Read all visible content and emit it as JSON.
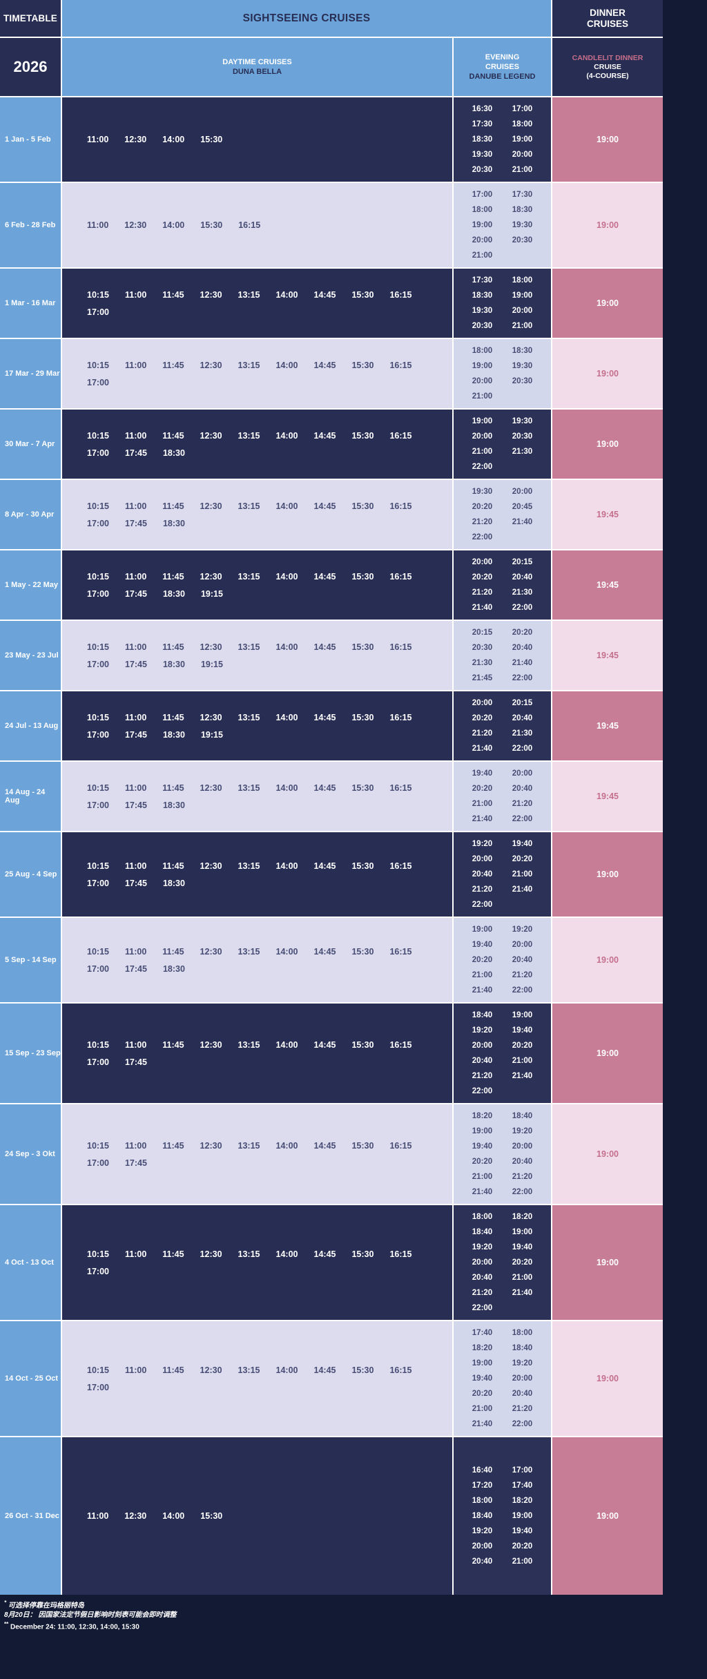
{
  "header": {
    "timetable_label": "TIMETABLE",
    "year": "2026",
    "sightseeing_title": "SIGHTSEEING CRUISES",
    "dinner_title": "DINNER\nCRUISES",
    "daytime_sub": {
      "line1": "DAYTIME CRUISES",
      "line2": "DUNA BELLA"
    },
    "evening_sub": {
      "line1": "EVENING",
      "line2": "CRUISES",
      "line3": "DANUBE LEGEND"
    },
    "dinner_sub": {
      "line1": "CANDLELIT DINNER",
      "line2": "CRUISE",
      "line3": "(4-COURSE)"
    }
  },
  "colors": {
    "navy": "#282d53",
    "navy_evening": "#2c3158",
    "blue": "#6ca4d9",
    "lavender": "#dcdcee",
    "lavender_evening": "#d3d7ec",
    "rose": "#c77d95",
    "pink_light": "#f3dcea",
    "rose_text": "#c4708c",
    "candlelit_text": "#c56e88",
    "navy_text": "#474d74",
    "page_bg": "#131a33",
    "border_white": "#ffffff"
  },
  "rows": [
    {
      "dates": "1 Jan - 5 Feb",
      "theme": "dark",
      "daytime": [
        "11:00",
        "12:30",
        "14:00",
        "15:30"
      ],
      "evening": [
        [
          "16:30",
          "17:00"
        ],
        [
          "17:30",
          "18:00"
        ],
        [
          "18:30",
          "19:00"
        ],
        [
          "19:30",
          "20:00"
        ],
        [
          "20:30",
          "21:00"
        ]
      ],
      "dinner": "19:00"
    },
    {
      "dates": "6 Feb - 28 Feb",
      "theme": "light",
      "daytime": [
        "11:00",
        "12:30",
        "14:00",
        "15:30",
        "16:15"
      ],
      "evening": [
        [
          "17:00",
          "17:30"
        ],
        [
          "18:00",
          "18:30"
        ],
        [
          "19:00",
          "19:30"
        ],
        [
          "20:00",
          "20:30"
        ],
        [
          "21:00"
        ]
      ],
      "dinner": "19:00"
    },
    {
      "dates": "1 Mar - 16 Mar",
      "theme": "dark",
      "daytime": [
        "10:15",
        "11:00",
        "11:45",
        "12:30",
        "13:15",
        "14:00",
        "14:45",
        "15:30",
        "16:15",
        "17:00"
      ],
      "evening": [
        [
          "17:30",
          "18:00"
        ],
        [
          "18:30",
          "19:00"
        ],
        [
          "19:30",
          "20:00"
        ],
        [
          "20:30",
          "21:00"
        ]
      ],
      "dinner": "19:00"
    },
    {
      "dates": "17 Mar - 29 Mar",
      "theme": "light",
      "daytime": [
        "10:15",
        "11:00",
        "11:45",
        "12:30",
        "13:15",
        "14:00",
        "14:45",
        "15:30",
        "16:15",
        "17:00"
      ],
      "evening": [
        [
          "18:00",
          "18:30"
        ],
        [
          "19:00",
          "19:30"
        ],
        [
          "20:00",
          "20:30"
        ],
        [
          "21:00"
        ]
      ],
      "dinner": "19:00"
    },
    {
      "dates": "30 Mar - 7 Apr",
      "theme": "dark",
      "daytime": [
        "10:15",
        "11:00",
        "11:45",
        "12:30",
        "13:15",
        "14:00",
        "14:45",
        "15:30",
        "16:15",
        "17:00",
        "17:45",
        "18:30"
      ],
      "evening": [
        [
          "19:00",
          "19:30"
        ],
        [
          "20:00",
          "20:30"
        ],
        [
          "21:00",
          "21:30"
        ],
        [
          "22:00"
        ]
      ],
      "dinner": "19:00"
    },
    {
      "dates": "8 Apr - 30 Apr",
      "theme": "light",
      "daytime": [
        "10:15",
        "11:00",
        "11:45",
        "12:30",
        "13:15",
        "14:00",
        "14:45",
        "15:30",
        "16:15",
        "17:00",
        "17:45",
        "18:30"
      ],
      "evening": [
        [
          "19:30",
          "20:00"
        ],
        [
          "20:20",
          "20:45"
        ],
        [
          "21:20",
          "21:40"
        ],
        [
          "22:00"
        ]
      ],
      "dinner": "19:45"
    },
    {
      "dates": "1 May - 22 May",
      "theme": "dark",
      "daytime": [
        "10:15",
        "11:00",
        "11:45",
        "12:30",
        "13:15",
        "14:00",
        "14:45",
        "15:30",
        "16:15",
        "17:00",
        "17:45",
        "18:30",
        "19:15"
      ],
      "evening": [
        [
          "20:00",
          "20:15"
        ],
        [
          "20:20",
          "20:40"
        ],
        [
          "21:20",
          "21:30"
        ],
        [
          "21:40",
          "22:00"
        ]
      ],
      "dinner": "19:45"
    },
    {
      "dates": "23 May - 23 Jul",
      "theme": "light",
      "daytime": [
        "10:15",
        "11:00",
        "11:45",
        "12:30",
        "13:15",
        "14:00",
        "14:45",
        "15:30",
        "16:15",
        "17:00",
        "17:45",
        "18:30",
        "19:15"
      ],
      "evening": [
        [
          "20:15",
          "20:20"
        ],
        [
          "20:30",
          "20:40"
        ],
        [
          "21:30",
          "21:40"
        ],
        [
          "21:45",
          "22:00"
        ]
      ],
      "dinner": "19:45"
    },
    {
      "dates": "24 Jul - 13 Aug",
      "theme": "dark",
      "daytime": [
        "10:15",
        "11:00",
        "11:45",
        "12:30",
        "13:15",
        "14:00",
        "14:45",
        "15:30",
        "16:15",
        "17:00",
        "17:45",
        "18:30",
        "19:15"
      ],
      "evening": [
        [
          "20:00",
          "20:15"
        ],
        [
          "20:20",
          "20:40"
        ],
        [
          "21:20",
          "21:30"
        ],
        [
          "21:40",
          "22:00"
        ]
      ],
      "dinner": "19:45"
    },
    {
      "dates": "14 Aug - 24 Aug",
      "theme": "light",
      "daytime": [
        "10:15",
        "11:00",
        "11:45",
        "12:30",
        "13:15",
        "14:00",
        "14:45",
        "15:30",
        "16:15",
        "17:00",
        "17:45",
        "18:30"
      ],
      "evening": [
        [
          "19:40",
          "20:00"
        ],
        [
          "20:20",
          "20:40"
        ],
        [
          "21:00",
          "21:20"
        ],
        [
          "21:40",
          "22:00"
        ]
      ],
      "dinner": "19:45"
    },
    {
      "dates": "25 Aug - 4 Sep",
      "theme": "dark",
      "daytime": [
        "10:15",
        "11:00",
        "11:45",
        "12:30",
        "13:15",
        "14:00",
        "14:45",
        "15:30",
        "16:15",
        "17:00",
        "17:45",
        "18:30"
      ],
      "evening": [
        [
          "19:20",
          "19:40"
        ],
        [
          "20:00",
          "20:20"
        ],
        [
          "20:40",
          "21:00"
        ],
        [
          "21:20",
          "21:40"
        ],
        [
          "22:00"
        ]
      ],
      "dinner": "19:00"
    },
    {
      "dates": "5 Sep - 14 Sep",
      "theme": "light",
      "daytime": [
        "10:15",
        "11:00",
        "11:45",
        "12:30",
        "13:15",
        "14:00",
        "14:45",
        "15:30",
        "16:15",
        "17:00",
        "17:45",
        "18:30"
      ],
      "evening": [
        [
          "19:00",
          "19:20"
        ],
        [
          "19:40",
          "20:00"
        ],
        [
          "20:20",
          "20:40"
        ],
        [
          "21:00",
          "21:20"
        ],
        [
          "21:40",
          "22:00"
        ]
      ],
      "dinner": "19:00"
    },
    {
      "dates": "15 Sep - 23 Sep",
      "theme": "dark",
      "daytime": [
        "10:15",
        "11:00",
        "11:45",
        "12:30",
        "13:15",
        "14:00",
        "14:45",
        "15:30",
        "16:15",
        "17:00",
        "17:45"
      ],
      "evening": [
        [
          "18:40",
          "19:00"
        ],
        [
          "19:20",
          "19:40"
        ],
        [
          "20:00",
          "20:20"
        ],
        [
          "20:40",
          "21:00"
        ],
        [
          "21:20",
          "21:40"
        ],
        [
          "22:00"
        ]
      ],
      "dinner": "19:00"
    },
    {
      "dates": "24 Sep - 3 Okt",
      "theme": "light",
      "daytime": [
        "10:15",
        "11:00",
        "11:45",
        "12:30",
        "13:15",
        "14:00",
        "14:45",
        "15:30",
        "16:15",
        "17:00",
        "17:45"
      ],
      "evening": [
        [
          "18:20",
          "18:40"
        ],
        [
          "19:00",
          "19:20"
        ],
        [
          "19:40",
          "20:00"
        ],
        [
          "20:20",
          "20:40"
        ],
        [
          "21:00",
          "21:20"
        ],
        [
          "21:40",
          "22:00"
        ]
      ],
      "dinner": "19:00"
    },
    {
      "dates": "4 Oct - 13 Oct",
      "theme": "dark",
      "daytime": [
        "10:15",
        "11:00",
        "11:45",
        "12:30",
        "13:15",
        "14:00",
        "14:45",
        "15:30",
        "16:15",
        "17:00"
      ],
      "evening": [
        [
          "18:00",
          "18:20"
        ],
        [
          "18:40",
          "19:00"
        ],
        [
          "19:20",
          "19:40"
        ],
        [
          "20:00",
          "20:20"
        ],
        [
          "20:40",
          "21:00"
        ],
        [
          "21:20",
          "21:40"
        ],
        [
          "22:00"
        ]
      ],
      "dinner": "19:00"
    },
    {
      "dates": "14 Oct - 25 Oct",
      "theme": "light",
      "daytime": [
        "10:15",
        "11:00",
        "11:45",
        "12:30",
        "13:15",
        "14:00",
        "14:45",
        "15:30",
        "16:15",
        "17:00"
      ],
      "evening": [
        [
          "17:40",
          "18:00"
        ],
        [
          "18:20",
          "18:40"
        ],
        [
          "19:00",
          "19:20"
        ],
        [
          "19:40",
          "20:00"
        ],
        [
          "20:20",
          "20:40"
        ],
        [
          "21:00",
          "21:20"
        ],
        [
          "21:40",
          "22:00"
        ]
      ],
      "dinner": "19:00"
    },
    {
      "dates": "26 Oct - 31 Dec",
      "theme": "dark",
      "daytime": [
        "11:00",
        "12:30",
        "14:00",
        "15:30"
      ],
      "evening": [
        [
          "16:40",
          "17:00"
        ],
        [
          "17:20",
          "17:40"
        ],
        [
          "18:00",
          "18:20"
        ],
        [
          "18:40",
          "19:00"
        ],
        [
          "19:20",
          "19:40"
        ],
        [
          "20:00",
          "20:20"
        ],
        [
          "20:40",
          "21:00"
        ]
      ],
      "dinner": "19:00"
    }
  ],
  "footnotes": [
    {
      "marker": "*",
      "text": "可选择停靠在玛格丽特岛"
    },
    {
      "marker": "",
      "text": "8月20日： 因国家法定节假日影响时刻表可能会即时调整"
    },
    {
      "marker": "**",
      "text": "December 24: 11:00, 12:30, 14:00, 15:30"
    }
  ]
}
